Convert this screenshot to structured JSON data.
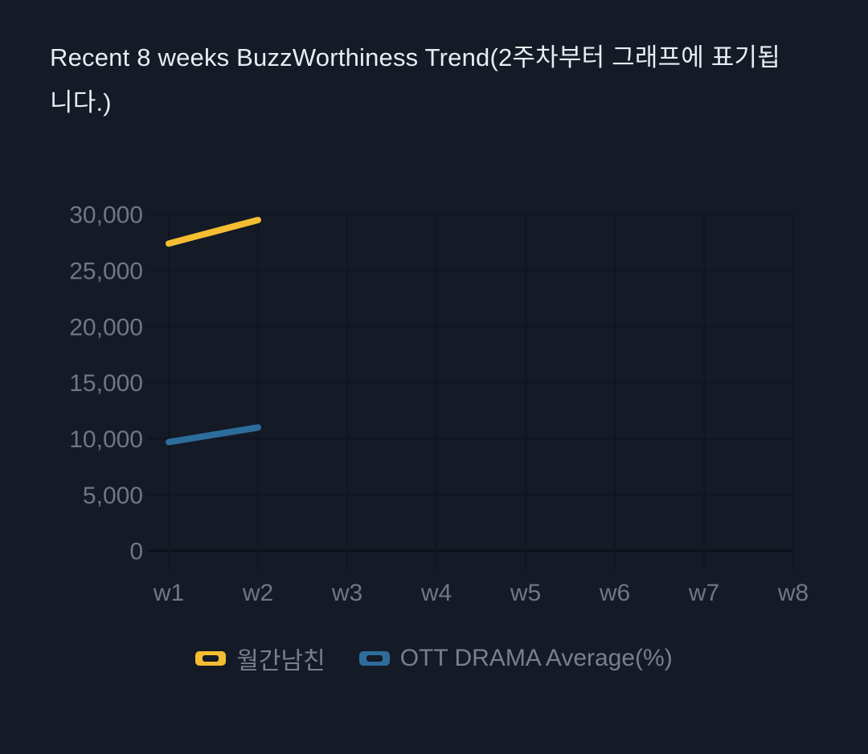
{
  "page": {
    "background": "#141a26",
    "title": "Recent 8 weeks BuzzWorthiness Trend(2주차부터 그래프에 표기됩니다.)"
  },
  "chart_data": {
    "type": "line",
    "title": "Recent 8 weeks BuzzWorthiness Trend(2주차부터 그래프에 표기됩니다.)",
    "categories": [
      "w1",
      "w2",
      "w3",
      "w4",
      "w5",
      "w6",
      "w7",
      "w8"
    ],
    "series": [
      {
        "name": "월간남친",
        "color": "#f5bd31",
        "values": [
          27400,
          29500,
          null,
          null,
          null,
          null,
          null,
          null
        ]
      },
      {
        "name": "OTT DRAMA Average(%)",
        "color": "#2d6d9c",
        "values": [
          9700,
          11000,
          null,
          null,
          null,
          null,
          null,
          null
        ]
      }
    ],
    "ylim": [
      0,
      30000
    ],
    "ytick_interval": 5000,
    "ytick_labels": [
      "0",
      "5,000",
      "10,000",
      "15,000",
      "20,000",
      "25,000",
      "30,000"
    ],
    "xlabel": "",
    "ylabel": "",
    "grid": true,
    "legend_position": "bottom",
    "colors": {
      "axis_text": "#6f7787",
      "grid_line": "#10151f",
      "axis_line": "#0b0f17"
    }
  },
  "legend": {
    "items": [
      {
        "label": "월간남친",
        "color": "#f5bd31"
      },
      {
        "label": "OTT DRAMA Average(%)",
        "color": "#2d6d9c"
      }
    ]
  }
}
